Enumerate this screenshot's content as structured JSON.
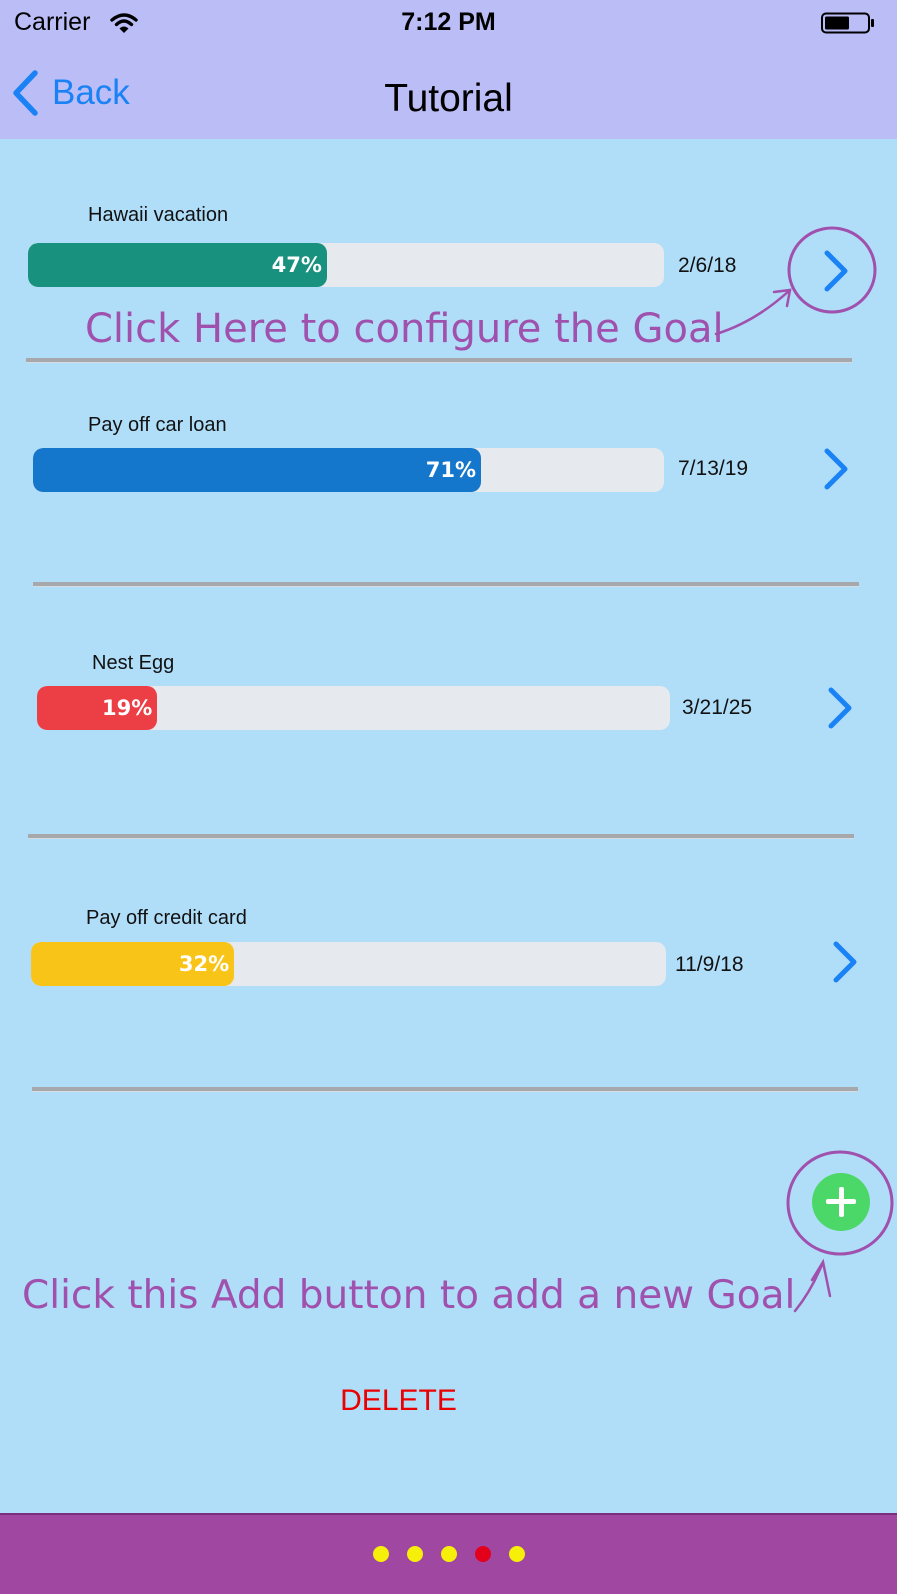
{
  "status_bar": {
    "carrier": "Carrier",
    "time": "7:12 PM"
  },
  "nav": {
    "back_label": "Back",
    "title": "Tutorial"
  },
  "goals": [
    {
      "name": "Hawaii vacation",
      "percent_label": "47%",
      "progress": 0.47,
      "date": "2/6/18",
      "color": "#18917f"
    },
    {
      "name": "Pay off car loan",
      "percent_label": "71%",
      "progress": 0.71,
      "date": "7/13/19",
      "color": "#1577cc"
    },
    {
      "name": "Nest Egg",
      "percent_label": "19%",
      "progress": 0.19,
      "date": "3/21/25",
      "color": "#ec3e45"
    },
    {
      "name": "Pay off credit card",
      "percent_label": "32%",
      "progress": 0.32,
      "date": "11/9/18",
      "color": "#f8c418"
    }
  ],
  "tutorial": {
    "configure_hint": "Click Here to configure the Goal",
    "add_hint": "Click this Add button to add a new Goal",
    "highlight_color": "#a050ad"
  },
  "actions": {
    "delete_label": "DELETE"
  },
  "colors": {
    "accent": "#1a82f5",
    "add_button": "#4cd868",
    "delete": "#ea0000",
    "bottom_bar": "#a047a1"
  },
  "page_control": {
    "dots": [
      {
        "color": "#f5ef09"
      },
      {
        "color": "#f5ef09"
      },
      {
        "color": "#f5ef09"
      },
      {
        "color": "#e3001b"
      },
      {
        "color": "#f5ef09"
      }
    ],
    "current_index": 3,
    "total": 5
  }
}
